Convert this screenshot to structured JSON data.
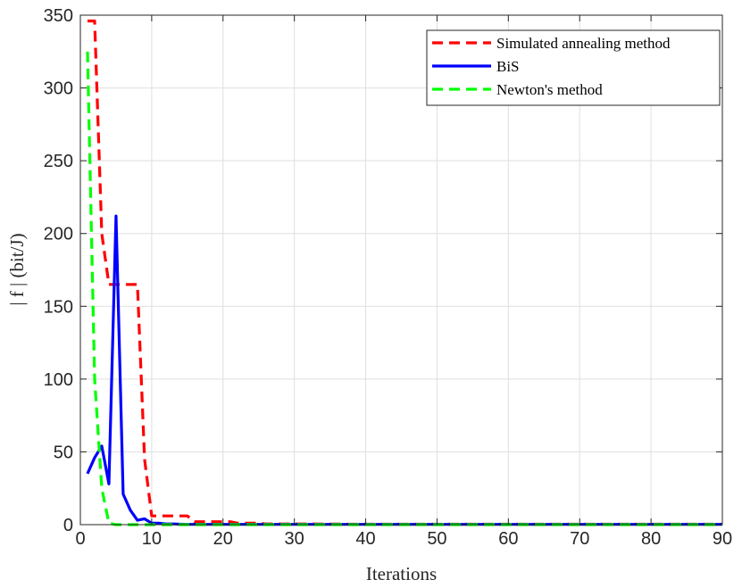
{
  "chart_data": {
    "type": "line",
    "xlabel": "Iterations",
    "ylabel": "| f | (bit/J)",
    "xlim": [
      0,
      90
    ],
    "ylim": [
      0,
      350
    ],
    "x_ticks": [
      "0",
      "10",
      "20",
      "30",
      "40",
      "50",
      "60",
      "70",
      "80",
      "90"
    ],
    "y_ticks": [
      "0",
      "50",
      "100",
      "150",
      "200",
      "250",
      "300",
      "350"
    ],
    "grid": true,
    "legend_position": "top-right",
    "series": [
      {
        "name": "Simulated annealing method",
        "color": "#ff0000",
        "style": "dashed",
        "x": [
          1,
          2,
          3,
          4,
          5,
          6,
          7,
          8,
          9,
          10,
          11,
          12,
          13,
          14,
          15,
          16,
          17,
          18,
          19,
          20,
          21,
          22,
          23,
          24,
          25,
          26,
          30,
          40,
          50,
          60,
          70,
          80,
          90
        ],
        "y": [
          346,
          346,
          200,
          165,
          165,
          165,
          165,
          165,
          45,
          6,
          6,
          6,
          6,
          6,
          6,
          2,
          2,
          2,
          2,
          2,
          2,
          1,
          1,
          1,
          1,
          0.5,
          0.5,
          0.3,
          0.3,
          0.3,
          0.3,
          0.3,
          0.3
        ]
      },
      {
        "name": "BiS",
        "color": "#0000ff",
        "style": "solid",
        "x": [
          1,
          2,
          3,
          4,
          5,
          6,
          7,
          8,
          9,
          10,
          11,
          12,
          13,
          14,
          15,
          20,
          30,
          40,
          50,
          60,
          70,
          80,
          90
        ],
        "y": [
          35,
          46,
          54,
          28,
          212,
          21,
          10,
          3,
          4,
          1,
          1,
          0.5,
          0.5,
          0.3,
          0.2,
          0.2,
          0.2,
          0.2,
          0.2,
          0.2,
          0.2,
          0.2,
          0.2
        ]
      },
      {
        "name": "Newton's method",
        "color": "#00ff00",
        "style": "dashed",
        "x": [
          1,
          2,
          3,
          4,
          5,
          6,
          10,
          20,
          30,
          40,
          50,
          60,
          70,
          80,
          90
        ],
        "y": [
          325,
          100,
          25,
          1,
          0,
          0,
          0,
          0,
          0,
          0,
          0,
          0,
          0,
          0,
          0
        ]
      }
    ]
  }
}
